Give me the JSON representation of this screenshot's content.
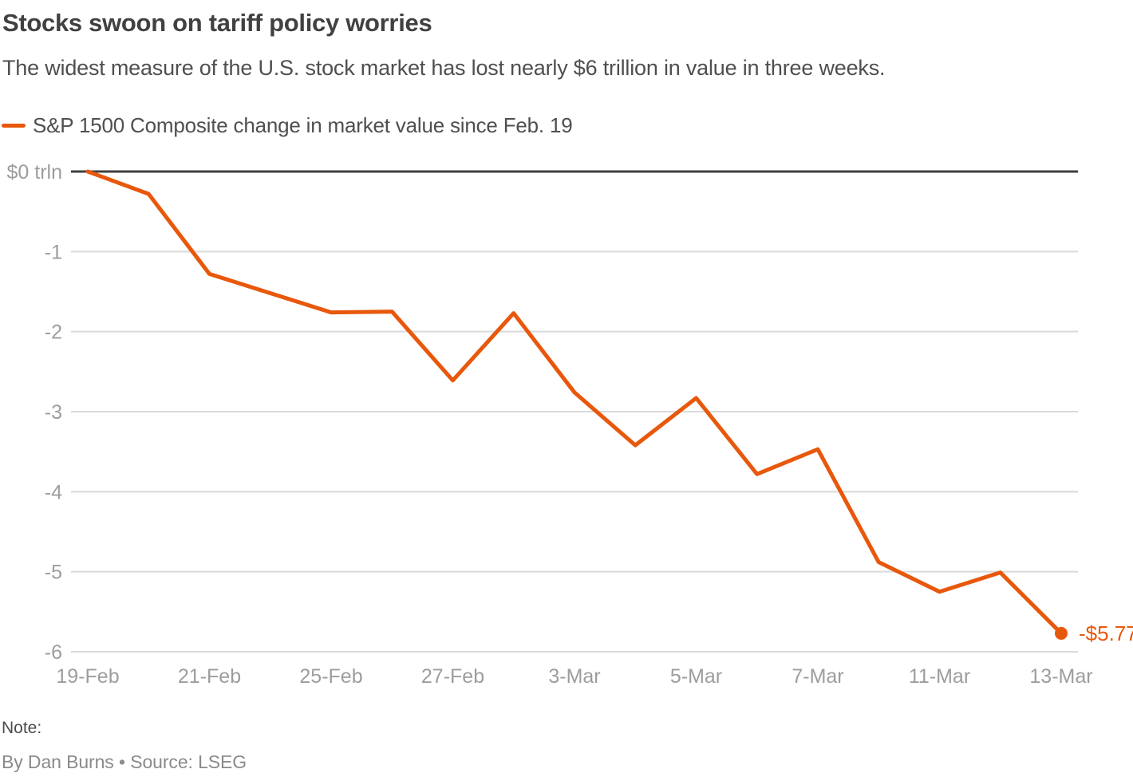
{
  "header": {
    "title": "Stocks swoon on tariff policy worries",
    "subtitle": "The widest measure of the U.S. stock market has lost nearly $6 trillion in value in three weeks."
  },
  "legend": {
    "label": "S&P 1500 Composite change in market value since Feb. 19",
    "color": "#e8580c"
  },
  "chart_data": {
    "type": "line",
    "title": "S&P 1500 Composite change in market value since Feb. 19",
    "unit": "$ trillion",
    "x": [
      "19-Feb",
      "20-Feb",
      "21-Feb",
      "24-Feb",
      "25-Feb",
      "26-Feb",
      "27-Feb",
      "28-Feb",
      "3-Mar",
      "4-Mar",
      "5-Mar",
      "6-Mar",
      "7-Mar",
      "10-Mar",
      "11-Mar",
      "12-Mar",
      "13-Mar"
    ],
    "values": [
      0,
      -0.28,
      -1.28,
      -1.52,
      -1.76,
      -1.75,
      -2.61,
      -1.77,
      -2.76,
      -3.42,
      -2.83,
      -3.78,
      -3.47,
      -4.88,
      -5.25,
      -5.01,
      -5.77
    ],
    "x_tick_labels": [
      "19-Feb",
      "21-Feb",
      "25-Feb",
      "27-Feb",
      "3-Mar",
      "5-Mar",
      "7-Mar",
      "11-Mar",
      "13-Mar"
    ],
    "x_tick_every": 2,
    "y_ticks": [
      {
        "label": "$0 trln",
        "value": 0
      },
      {
        "label": "-1",
        "value": -1
      },
      {
        "label": "-2",
        "value": -2
      },
      {
        "label": "-3",
        "value": -3
      },
      {
        "label": "-4",
        "value": -4
      },
      {
        "label": "-5",
        "value": -5
      },
      {
        "label": "-6",
        "value": -6
      }
    ],
    "ylim": [
      -6,
      0
    ],
    "grid": true,
    "legend_position": "top-left",
    "end_label": "-$5.77",
    "line_color": "#e8580c",
    "zero_line_color": "#3f3f3f",
    "grid_color": "#d9d9d9",
    "tick_color": "#9d9d9d"
  },
  "footer": {
    "note_label": "Note:",
    "byline": "By Dan Burns • Source: LSEG"
  }
}
